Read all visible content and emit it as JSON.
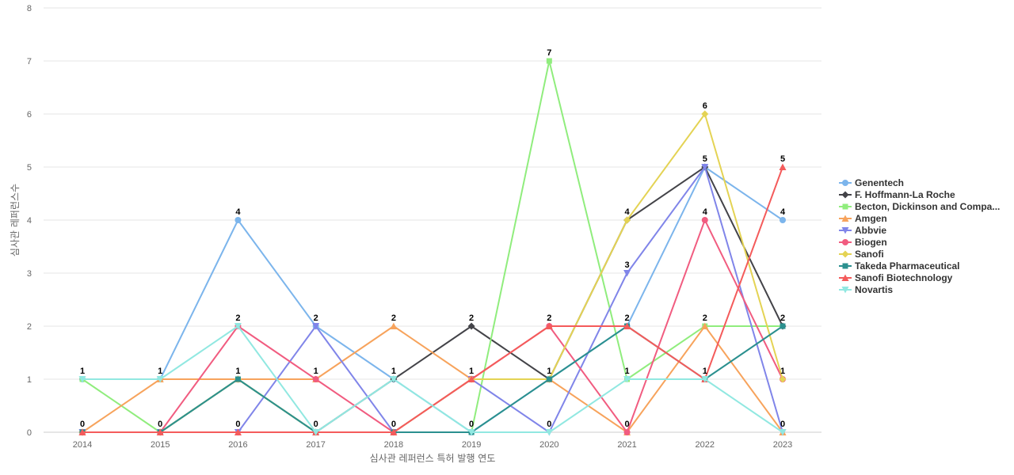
{
  "chart_data": {
    "type": "line",
    "title": "",
    "xlabel": "심사관 레퍼런스 특허 발행 연도",
    "ylabel": "심사관 레퍼런스수",
    "categories": [
      "2014",
      "2015",
      "2016",
      "2017",
      "2018",
      "2019",
      "2020",
      "2021",
      "2022",
      "2023"
    ],
    "ylim": [
      0,
      8
    ],
    "yticks": [
      "0",
      "1",
      "2",
      "3",
      "4",
      "5",
      "6",
      "7",
      "8"
    ],
    "grid": true,
    "legend_position": "right",
    "series": [
      {
        "name": "Genentech",
        "color": "#7cb5ec",
        "marker": "circle",
        "values": [
          1,
          1,
          4,
          2,
          1,
          0,
          1,
          2,
          5,
          4
        ]
      },
      {
        "name": "F. Hoffmann-La Roche",
        "color": "#434348",
        "marker": "diamond",
        "values": [
          0,
          0,
          1,
          0,
          1,
          2,
          1,
          4,
          5,
          2
        ]
      },
      {
        "name": "Becton, Dickinson and Compa...",
        "color": "#90ed7d",
        "marker": "square",
        "values": [
          1,
          0,
          1,
          0,
          0,
          0,
          7,
          1,
          2,
          2
        ]
      },
      {
        "name": "Amgen",
        "color": "#f7a35c",
        "marker": "triangle",
        "values": [
          0,
          1,
          1,
          1,
          2,
          1,
          1,
          0,
          2,
          0
        ]
      },
      {
        "name": "Abbvie",
        "color": "#8085e9",
        "marker": "triangle-down",
        "values": [
          0,
          0,
          0,
          2,
          0,
          1,
          0,
          3,
          5,
          0
        ]
      },
      {
        "name": "Biogen",
        "color": "#f15c80",
        "marker": "circle",
        "values": [
          0,
          0,
          2,
          1,
          0,
          1,
          2,
          0,
          4,
          1
        ]
      },
      {
        "name": "Sanofi",
        "color": "#e4d354",
        "marker": "diamond",
        "values": [
          0,
          0,
          1,
          0,
          0,
          1,
          1,
          4,
          6,
          1
        ]
      },
      {
        "name": "Takeda Pharmaceutical",
        "color": "#2b908f",
        "marker": "square",
        "values": [
          0,
          0,
          1,
          0,
          0,
          0,
          1,
          2,
          1,
          2
        ]
      },
      {
        "name": "Sanofi Biotechnology",
        "color": "#f45b5b",
        "marker": "triangle",
        "values": [
          0,
          0,
          0,
          0,
          0,
          1,
          2,
          2,
          1,
          5
        ]
      },
      {
        "name": "Novartis",
        "color": "#91e8e1",
        "marker": "triangle-down",
        "values": [
          1,
          1,
          2,
          0,
          1,
          0,
          0,
          1,
          1,
          0
        ]
      }
    ],
    "data_labels": [
      {
        "x": "2014",
        "value": 1
      },
      {
        "x": "2014",
        "value": 0
      },
      {
        "x": "2015",
        "value": 1
      },
      {
        "x": "2015",
        "value": 0
      },
      {
        "x": "2016",
        "value": 4
      },
      {
        "x": "2016",
        "value": 2
      },
      {
        "x": "2016",
        "value": 1
      },
      {
        "x": "2016",
        "value": 0
      },
      {
        "x": "2017",
        "value": 2
      },
      {
        "x": "2017",
        "value": 1
      },
      {
        "x": "2017",
        "value": 0
      },
      {
        "x": "2018",
        "value": 2
      },
      {
        "x": "2018",
        "value": 1
      },
      {
        "x": "2018",
        "value": 0
      },
      {
        "x": "2019",
        "value": 2
      },
      {
        "x": "2019",
        "value": 1
      },
      {
        "x": "2019",
        "value": 0
      },
      {
        "x": "2020",
        "value": 7
      },
      {
        "x": "2020",
        "value": 2
      },
      {
        "x": "2020",
        "value": 1
      },
      {
        "x": "2020",
        "value": 0
      },
      {
        "x": "2021",
        "value": 4
      },
      {
        "x": "2021",
        "value": 3
      },
      {
        "x": "2021",
        "value": 2
      },
      {
        "x": "2021",
        "value": 1
      },
      {
        "x": "2021",
        "value": 0
      },
      {
        "x": "2022",
        "value": 6
      },
      {
        "x": "2022",
        "value": 5
      },
      {
        "x": "2022",
        "value": 4
      },
      {
        "x": "2022",
        "value": 2
      },
      {
        "x": "2022",
        "value": 1
      },
      {
        "x": "2023",
        "value": 5
      },
      {
        "x": "2023",
        "value": 4
      },
      {
        "x": "2023",
        "value": 2
      },
      {
        "x": "2023",
        "value": 1
      },
      {
        "x": "2023",
        "value": 0
      }
    ]
  }
}
